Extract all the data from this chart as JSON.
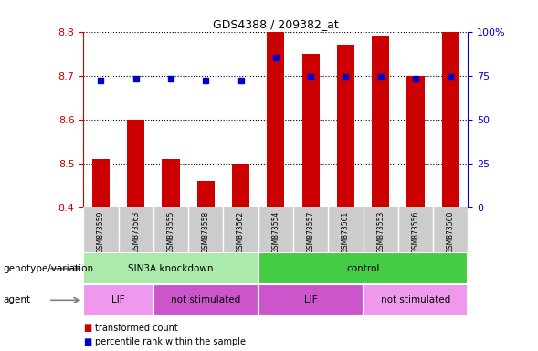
{
  "title": "GDS4388 / 209382_at",
  "samples": [
    "GSM873559",
    "GSM873563",
    "GSM873555",
    "GSM873558",
    "GSM873562",
    "GSM873554",
    "GSM873557",
    "GSM873561",
    "GSM873553",
    "GSM873556",
    "GSM873560"
  ],
  "bar_values": [
    8.51,
    8.6,
    8.51,
    8.46,
    8.5,
    8.8,
    8.75,
    8.77,
    8.79,
    8.7,
    8.8
  ],
  "percentile_values": [
    72,
    73,
    73,
    72,
    72,
    85,
    74,
    74,
    74,
    73,
    74
  ],
  "ylim": [
    8.4,
    8.8
  ],
  "yticks": [
    8.4,
    8.5,
    8.6,
    8.7,
    8.8
  ],
  "right_yticks": [
    0,
    25,
    50,
    75,
    100
  ],
  "bar_color": "#cc0000",
  "dot_color": "#0000cc",
  "bar_base": 8.4,
  "genotype_groups": [
    {
      "label": "SIN3A knockdown",
      "start": 0,
      "end": 5,
      "color": "#aaeaaa"
    },
    {
      "label": "control",
      "start": 5,
      "end": 11,
      "color": "#44cc44"
    }
  ],
  "agent_groups": [
    {
      "label": "LIF",
      "start": 0,
      "end": 2,
      "color": "#ee99ee"
    },
    {
      "label": "not stimulated",
      "start": 2,
      "end": 5,
      "color": "#cc55cc"
    },
    {
      "label": "LIF",
      "start": 5,
      "end": 8,
      "color": "#cc55cc"
    },
    {
      "label": "not stimulated",
      "start": 8,
      "end": 11,
      "color": "#ee99ee"
    }
  ],
  "legend_items": [
    {
      "label": "transformed count",
      "color": "#cc0000"
    },
    {
      "label": "percentile rank within the sample",
      "color": "#0000cc"
    }
  ],
  "genotype_label": "genotype/variation",
  "agent_label": "agent",
  "axis_color_left": "#cc0000",
  "axis_color_right": "#0000cc",
  "sample_bg": "#cccccc"
}
